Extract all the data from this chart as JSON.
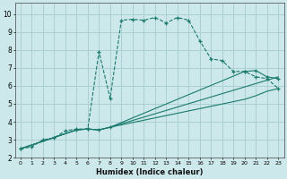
{
  "xlabel": "Humidex (Indice chaleur)",
  "bg_color": "#cce8ea",
  "grid_color": "#aacfd2",
  "line_color": "#1a7a6e",
  "xlim": [
    -0.5,
    23.5
  ],
  "ylim": [
    2.0,
    10.6
  ],
  "xticks": [
    0,
    1,
    2,
    3,
    4,
    5,
    6,
    7,
    8,
    9,
    10,
    11,
    12,
    13,
    14,
    15,
    16,
    17,
    18,
    19,
    20,
    21,
    22,
    23
  ],
  "yticks": [
    2,
    3,
    4,
    5,
    6,
    7,
    8,
    9,
    10
  ],
  "series": [
    {
      "x": [
        0,
        1,
        2,
        3,
        4,
        5,
        6,
        7,
        8,
        9,
        10,
        11,
        12,
        13,
        14,
        15,
        16,
        17,
        18,
        19,
        20,
        21,
        22,
        23
      ],
      "y": [
        2.5,
        2.6,
        3.0,
        3.1,
        3.5,
        3.6,
        3.6,
        7.9,
        5.3,
        9.65,
        9.7,
        9.65,
        9.8,
        9.5,
        9.8,
        9.65,
        8.5,
        7.5,
        7.4,
        6.8,
        6.8,
        6.5,
        6.4,
        5.85
      ],
      "marker": true,
      "linestyle": "--"
    },
    {
      "x": [
        0,
        5,
        6,
        7,
        8,
        23
      ],
      "y": [
        2.5,
        3.55,
        3.6,
        3.55,
        3.7,
        6.5
      ],
      "marker": false,
      "linestyle": "-"
    },
    {
      "x": [
        0,
        5,
        6,
        7,
        8,
        20,
        21,
        22,
        23
      ],
      "y": [
        2.5,
        3.55,
        3.6,
        3.55,
        3.7,
        6.8,
        6.85,
        6.5,
        6.4
      ],
      "marker": true,
      "linestyle": "-"
    },
    {
      "x": [
        0,
        5,
        6,
        7,
        8,
        20,
        21,
        22,
        23
      ],
      "y": [
        2.5,
        3.55,
        3.6,
        3.55,
        3.7,
        5.25,
        5.45,
        5.7,
        5.85
      ],
      "marker": false,
      "linestyle": "-"
    }
  ]
}
